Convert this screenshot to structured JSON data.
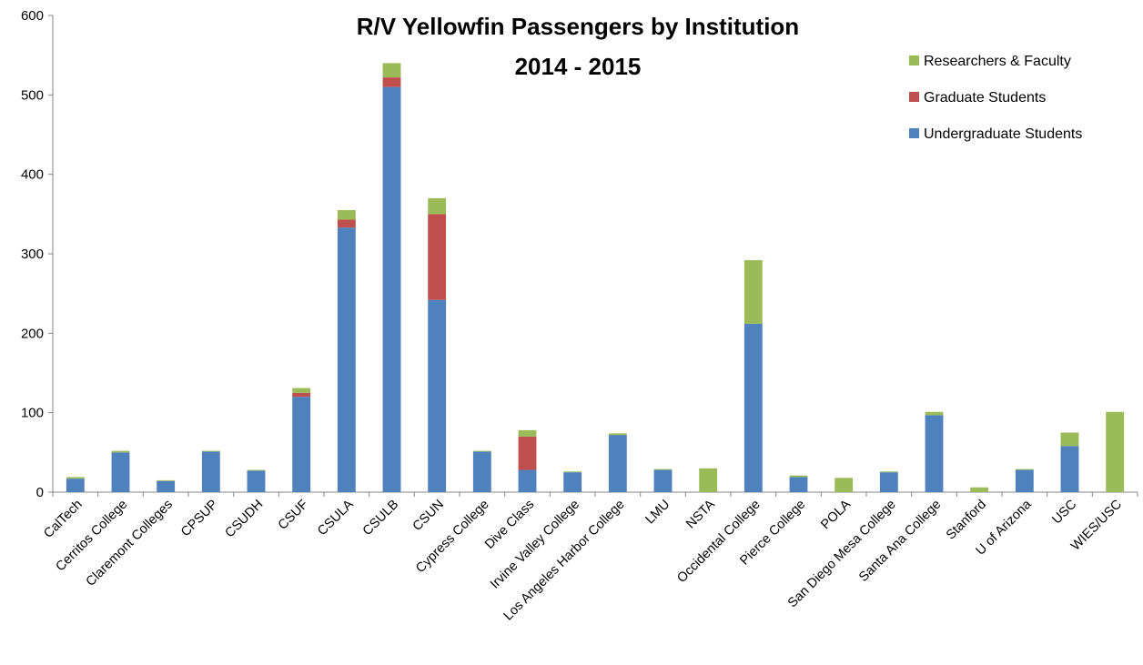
{
  "chart_data": {
    "type": "bar",
    "stacked": true,
    "title_lines": [
      "R/V Yellowfin Passengers by Institution",
      "2014 - 2015"
    ],
    "xlabel": "",
    "ylabel": "",
    "ylim": [
      0,
      600
    ],
    "y_ticks": [
      0,
      100,
      200,
      300,
      400,
      500,
      600
    ],
    "grid": false,
    "legend_position": "top-right",
    "categories": [
      "CalTech",
      "Cerritos College",
      "Claremont Colleges",
      "CPSUP",
      "CSUDH",
      "CSUF",
      "CSULA",
      "CSULB",
      "CSUN",
      "Cypress College",
      "Dive Class",
      "Irvine Valley College",
      "Los Angeles Harbor College",
      "LMU",
      "NSTA",
      "Occidental College",
      "Pierce College",
      "POLA",
      "San Diego Mesa College",
      "Santa Ana College",
      "Stanford",
      "U of Arizona",
      "USC",
      "WIES/USC"
    ],
    "series": [
      {
        "name": "Undergraduate Students",
        "color": "#4F81BD",
        "values": [
          17,
          50,
          14,
          51,
          27,
          120,
          333,
          510,
          242,
          51,
          28,
          25,
          72,
          28,
          0,
          212,
          19,
          0,
          25,
          97,
          0,
          28,
          58,
          0
        ]
      },
      {
        "name": "Graduate Students",
        "color": "#C0504D",
        "values": [
          0,
          0,
          0,
          0,
          0,
          5,
          10,
          12,
          108,
          0,
          42,
          0,
          0,
          0,
          0,
          0,
          0,
          0,
          0,
          0,
          0,
          0,
          0,
          0
        ]
      },
      {
        "name": "Researchers & Faculty",
        "color": "#9BBB59",
        "values": [
          2,
          2,
          1,
          1,
          1,
          6,
          12,
          18,
          20,
          1,
          8,
          1,
          2,
          1,
          30,
          80,
          2,
          18,
          1,
          4,
          6,
          1,
          17,
          101
        ]
      }
    ],
    "legend_order": [
      "Researchers & Faculty",
      "Graduate Students",
      "Undergraduate Students"
    ]
  }
}
